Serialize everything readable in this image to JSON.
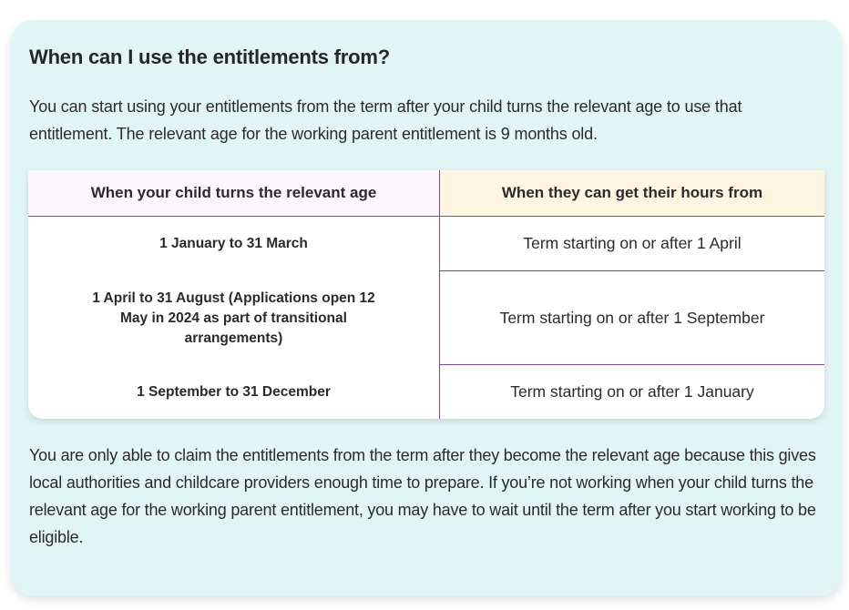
{
  "section": {
    "heading": "When can I use the entitlements from?",
    "intro": "You can start using your entitlements from the term after your child turns the relevant age to use that entitlement. The relevant age for the working parent entitlement is 9 months old.",
    "table": {
      "headers": [
        "When your child turns the relevant age",
        "When they can get their hours from"
      ],
      "rows": [
        [
          "1 January to 31 March",
          "Term starting on or after 1 April"
        ],
        [
          "1 April to 31 August (Applications open 12 May in 2024 as part of transitional arrangements)",
          "Term starting on or after 1 September"
        ],
        [
          "1 September to 31 December",
          "Term starting on or after 1 January"
        ]
      ]
    },
    "outro": "You are only able to claim the entitlements from the term after they become the relevant age because this gives local authorities and childcare providers enough time to prepare. If you’re not working when your child turns the relevant age for the working parent entitlement, you may have to wait until the term after you start working to be eligible."
  },
  "colors": {
    "card_bg": "#e2f5f5",
    "table_border": "#7b4f8c",
    "header_left_bg": "#fbf6fd",
    "header_right_bg": "#fff5e0"
  }
}
